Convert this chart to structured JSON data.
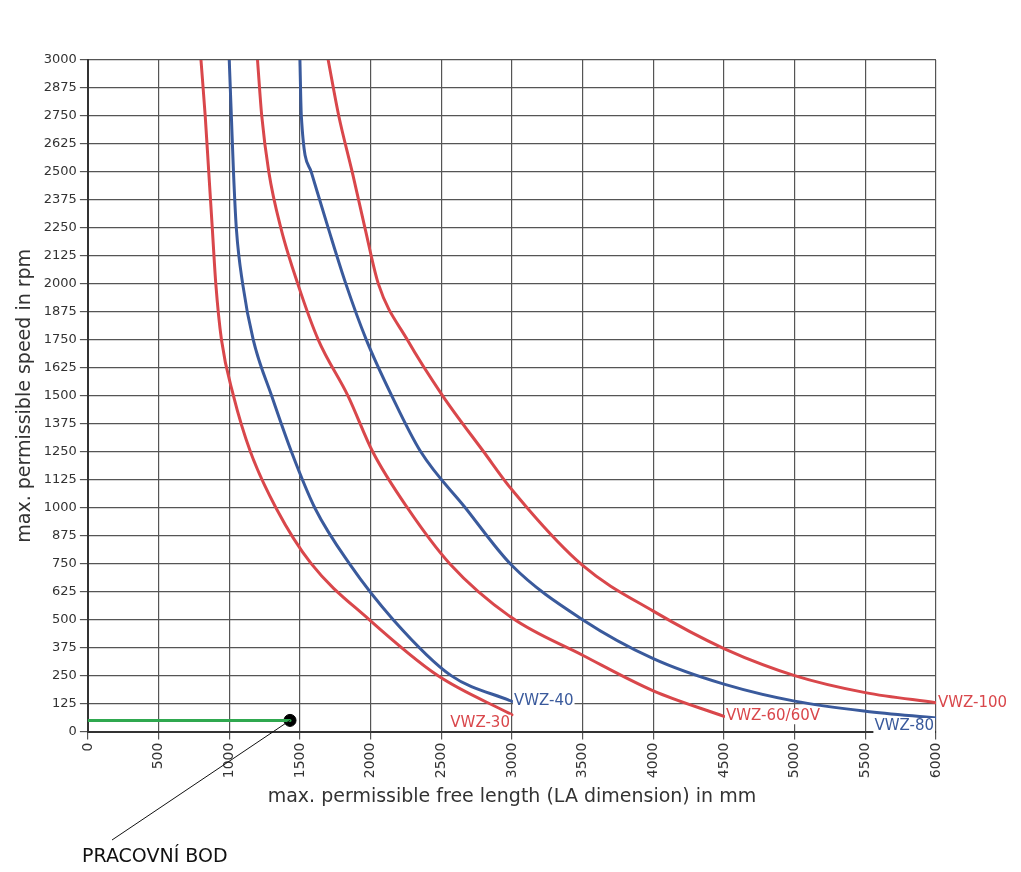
{
  "chart_data": {
    "type": "line",
    "xlabel": "max. permissible free length (LA dimension) in mm",
    "ylabel": "max. permissible speed in rpm",
    "xlim": [
      0,
      6000
    ],
    "xticks": [
      0,
      500,
      1000,
      1500,
      2000,
      2500,
      3000,
      3500,
      4000,
      4500,
      5000,
      5500,
      6000
    ],
    "ylim": [
      0,
      3000
    ],
    "yticks": [
      0,
      125,
      250,
      375,
      500,
      625,
      750,
      875,
      1000,
      1125,
      1250,
      1375,
      1500,
      1625,
      1750,
      1875,
      2000,
      2125,
      2250,
      2375,
      2500,
      2625,
      2750,
      2875,
      3000
    ],
    "grid": true,
    "legend": false,
    "marker": "none",
    "line_style": "solid",
    "series": [
      {
        "name": "VWZ-30",
        "color": "#d9474b",
        "x": [
          800,
          830,
          855,
          880,
          905,
          945,
          1030,
          1150,
          1330,
          1580,
          1990,
          2475,
          3000
        ],
        "values": [
          3000,
          2750,
          2500,
          2250,
          2000,
          1750,
          1500,
          1250,
          1000,
          750,
          500,
          250,
          75
        ]
      },
      {
        "name": "VWZ-40",
        "color": "#3a5a9c",
        "x": [
          1000,
          1015,
          1030,
          1050,
          1095,
          1170,
          1300,
          1440,
          1605,
          1850,
          2160,
          2570,
          3000
        ],
        "values": [
          3000,
          2750,
          2500,
          2250,
          2000,
          1750,
          1500,
          1250,
          1000,
          750,
          500,
          250,
          135
        ]
      },
      {
        "name": "VWZ-60/60V",
        "color": "#d9474b",
        "x": [
          1200,
          1230,
          1280,
          1365,
          1485,
          1630,
          1840,
          2015,
          2260,
          2560,
          3000,
          3500,
          4000,
          4500
        ],
        "values": [
          3000,
          2750,
          2500,
          2250,
          2000,
          1750,
          1500,
          1250,
          1000,
          750,
          508,
          341,
          182,
          68
        ]
      },
      {
        "name": "VWZ-80",
        "color": "#3a5a9c",
        "x": [
          1500,
          1510,
          1580,
          1700,
          1825,
          1970,
          2150,
          2355,
          2670,
          3000,
          3500,
          4000,
          4500,
          5000,
          5500,
          6000
        ],
        "values": [
          3000,
          2750,
          2500,
          2250,
          2000,
          1750,
          1500,
          1250,
          1000,
          742,
          500,
          326,
          212,
          136,
          91,
          61
        ]
      },
      {
        "name": "VWZ-100",
        "color": "#d9474b",
        "x": [
          1700,
          1775,
          1870,
          1960,
          2055,
          2260,
          2510,
          2800,
          3000,
          3500,
          4000,
          4500,
          5000,
          5500,
          6000
        ],
        "values": [
          3000,
          2750,
          2500,
          2250,
          2000,
          1750,
          1500,
          1250,
          1080,
          742,
          538,
          371,
          250,
          174,
          129
        ]
      },
      {
        "type": "line",
        "color": "#2fa84f",
        "x": [
          0,
          1430
        ],
        "values": [
          50,
          50
        ]
      },
      {
        "type": "scatter",
        "color": "#000000",
        "marker": "circle",
        "x": [
          1430
        ],
        "values": [
          50
        ]
      }
    ],
    "annotations": [
      {
        "text": "PRACOVNÍ BOD",
        "x": 1430,
        "y": 50
      }
    ]
  }
}
